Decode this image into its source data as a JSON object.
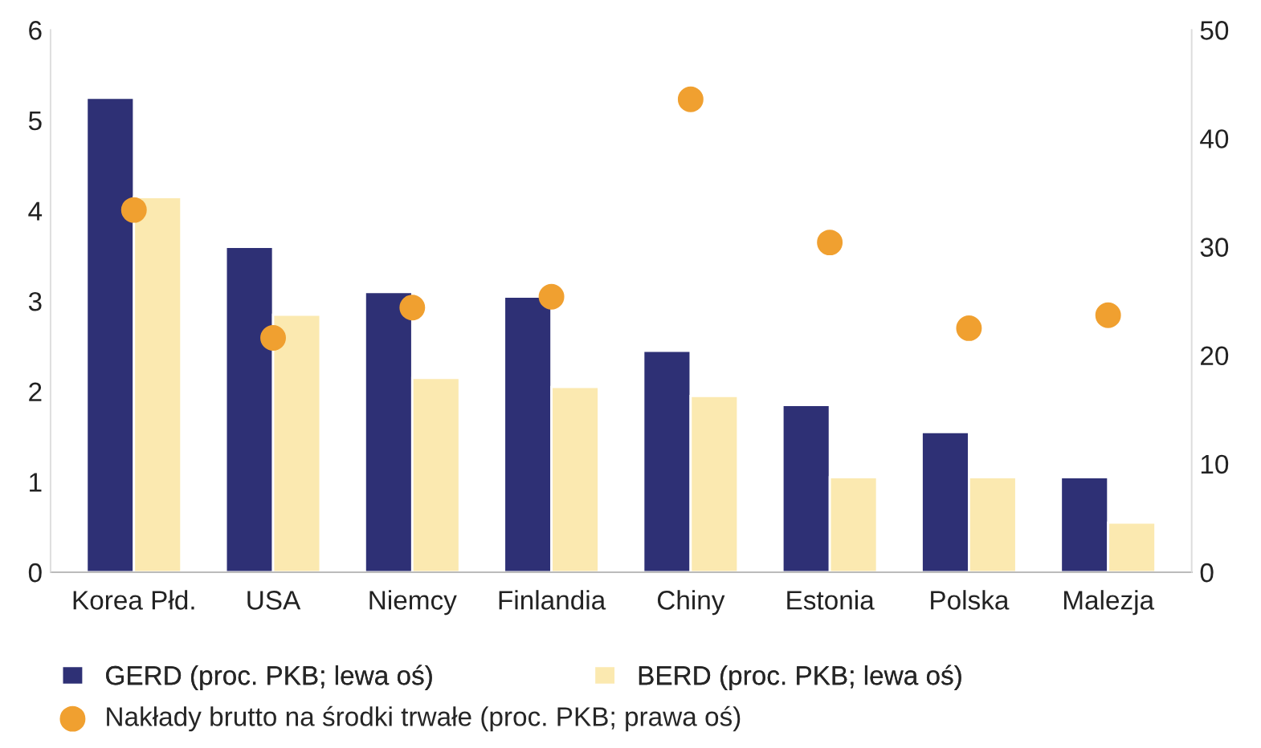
{
  "chart_data": {
    "type": "bar",
    "categories": [
      "Korea Płd.",
      "USA",
      "Niemcy",
      "Finlandia",
      "Chiny",
      "Estonia",
      "Polska",
      "Malezja"
    ],
    "series": [
      {
        "name": "GERD (proc. PKB; lewa oś)",
        "color": "#2e3075",
        "values": [
          5.25,
          3.6,
          3.1,
          3.05,
          2.45,
          1.85,
          1.55,
          1.05
        ]
      },
      {
        "name": "BERD (proc. PKB; lewa oś)",
        "color": "#fbe9b0",
        "values": [
          4.15,
          2.85,
          2.15,
          2.05,
          1.95,
          1.05,
          1.05,
          0.55
        ]
      },
      {
        "name": "Nakłady brutto na środki trwałe (proc. PKB; prawa oś)",
        "type": "scatter",
        "axis": "y2",
        "color": "#f0a030",
        "values": [
          33.4,
          21.6,
          24.4,
          25.4,
          43.6,
          30.4,
          22.5,
          23.7
        ]
      }
    ],
    "ylim": [
      0,
      6
    ],
    "yticks": [
      0,
      1,
      2,
      3,
      4,
      5,
      6
    ],
    "y2lim": [
      0,
      50
    ],
    "y2ticks": [
      0,
      10,
      20,
      30,
      40,
      50
    ],
    "grid": false,
    "legend": "bottom",
    "marker": "circle"
  }
}
